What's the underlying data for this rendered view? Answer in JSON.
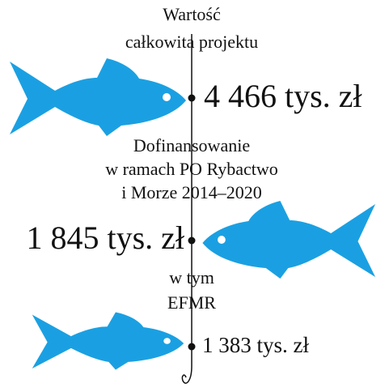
{
  "project_total": {
    "label_lines": [
      "Wartość",
      "całkowita projektu"
    ],
    "amount": "4 466 tys. zł"
  },
  "co_financing": {
    "label_lines": [
      "Dofinansowanie",
      "w ramach PO Rybactwo",
      "i Morze 2014–2020"
    ],
    "amount": "1 845 tys. zł"
  },
  "efmr": {
    "label_lines": [
      "w tym",
      "EFMR"
    ],
    "amount": "1 383 tys. zł"
  }
}
